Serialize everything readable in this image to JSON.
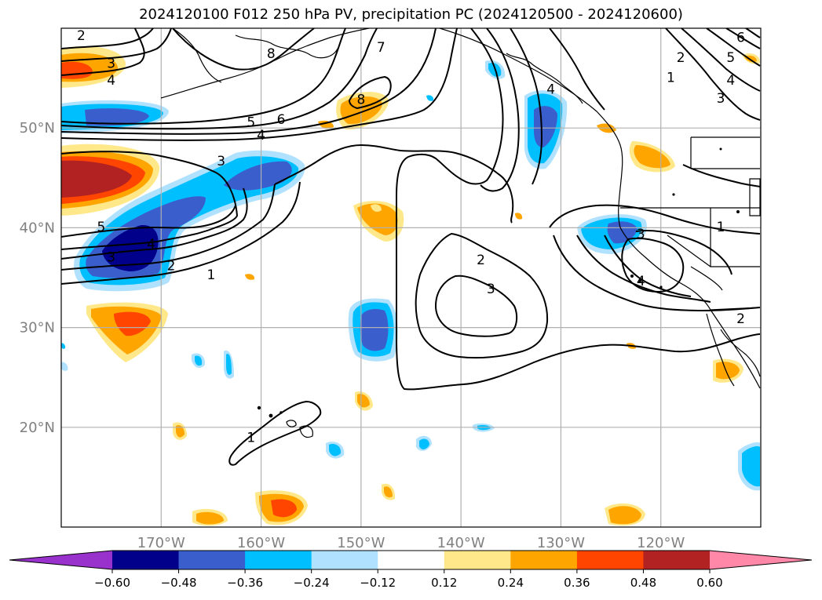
{
  "title": "2024120100 F012 250 hPa PV, precipitation PC (2024120500 - 2024120600)",
  "map": {
    "projection": "plate-carree",
    "lon_range": [
      -180,
      -110
    ],
    "lat_range": [
      10,
      60
    ],
    "lat_ticks": [
      {
        "value": 50,
        "label": "50°N"
      },
      {
        "value": 40,
        "label": "40°N"
      },
      {
        "value": 30,
        "label": "30°N"
      },
      {
        "value": 20,
        "label": "20°N"
      }
    ],
    "lon_ticks": [
      {
        "value": -170,
        "label": "170°W"
      },
      {
        "value": -160,
        "label": "160°W"
      },
      {
        "value": -150,
        "label": "150°W"
      },
      {
        "value": -140,
        "label": "140°W"
      },
      {
        "value": -130,
        "label": "130°W"
      },
      {
        "value": -120,
        "label": "120°W"
      }
    ],
    "gridlines": true,
    "pv_contour_labels": [
      {
        "text": "2",
        "lon": -178,
        "lat": 59.3
      },
      {
        "text": "3",
        "lon": -175,
        "lat": 56.5
      },
      {
        "text": "4",
        "lon": -175,
        "lat": 54.8
      },
      {
        "text": "8",
        "lon": -159,
        "lat": 57.5
      },
      {
        "text": "7",
        "lon": -148,
        "lat": 58.1
      },
      {
        "text": "8",
        "lon": -150,
        "lat": 52.9
      },
      {
        "text": "6",
        "lon": -158,
        "lat": 50.9
      },
      {
        "text": "5",
        "lon": -161,
        "lat": 50.6
      },
      {
        "text": "4",
        "lon": -160,
        "lat": 49.3
      },
      {
        "text": "3",
        "lon": -164,
        "lat": 46.7
      },
      {
        "text": "5",
        "lon": -176,
        "lat": 40.1
      },
      {
        "text": "4",
        "lon": -171,
        "lat": 38.4
      },
      {
        "text": "3",
        "lon": -175,
        "lat": 37.1
      },
      {
        "text": "2",
        "lon": -169,
        "lat": 36.2
      },
      {
        "text": "1",
        "lon": -165,
        "lat": 35.3
      },
      {
        "text": "2",
        "lon": -138,
        "lat": 36.8
      },
      {
        "text": "3",
        "lon": -137,
        "lat": 33.9
      },
      {
        "text": "4",
        "lon": -131,
        "lat": 53.9
      },
      {
        "text": "3",
        "lon": -122,
        "lat": 39.4
      },
      {
        "text": "4",
        "lon": -122,
        "lat": 34.7
      },
      {
        "text": "1",
        "lon": -114,
        "lat": 40.1
      },
      {
        "text": "2",
        "lon": -112,
        "lat": 30.9
      },
      {
        "text": "1",
        "lon": -161,
        "lat": 19.0
      },
      {
        "text": "6",
        "lon": -112,
        "lat": 59.1
      },
      {
        "text": "5",
        "lon": -113,
        "lat": 57.1
      },
      {
        "text": "2",
        "lon": -118,
        "lat": 57.1
      },
      {
        "text": "1",
        "lon": -119,
        "lat": 55.1
      },
      {
        "text": "4",
        "lon": -113,
        "lat": 54.8
      },
      {
        "text": "3",
        "lon": -114,
        "lat": 53.0
      }
    ]
  },
  "colorbar": {
    "ticks": [
      "−0.60",
      "−0.48",
      "−0.36",
      "−0.24",
      "−0.12",
      "0.12",
      "0.24",
      "0.36",
      "0.48",
      "0.60"
    ],
    "under_color": "#9932cc",
    "over_color": "#ff88a8",
    "colors": [
      "#00008b",
      "#3a5fcd",
      "#00bfff",
      "#b0e2ff",
      "#ffffff",
      "#ffe88a",
      "#ffa500",
      "#ff4500",
      "#b22222"
    ]
  },
  "shading_colors": {
    "pos1": "#ffe88a",
    "pos2": "#ffa500",
    "pos3": "#ff4500",
    "pos4": "#b22222",
    "neg1": "#b0e2ff",
    "neg2": "#00bfff",
    "neg3": "#3a5fcd",
    "neg4": "#00008b"
  }
}
